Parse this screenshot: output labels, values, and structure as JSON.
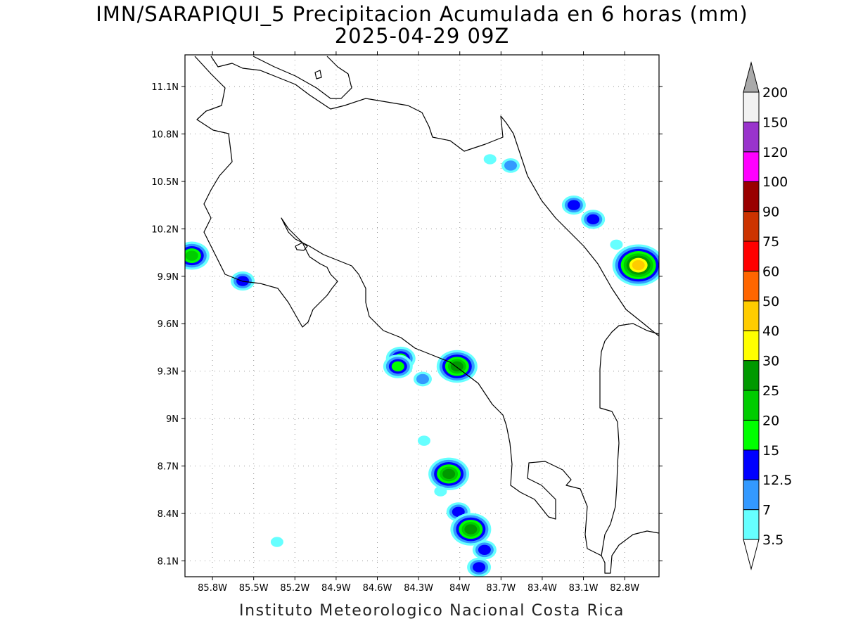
{
  "title": {
    "line1": "IMN/SARAPIQUI_5 Precipitacion Acumulada en 6 horas (mm)",
    "line2": "2025-04-29 09Z"
  },
  "footer": "Instituto Meteorologico Nacional Costa Rica",
  "map": {
    "lon_range": [
      -86.0,
      -82.55
    ],
    "lat_range": [
      8.0,
      11.3
    ],
    "lon_ticks": [
      {
        "value": -85.8,
        "label": "85.8W"
      },
      {
        "value": -85.5,
        "label": "85.5W"
      },
      {
        "value": -85.2,
        "label": "85.2W"
      },
      {
        "value": -84.9,
        "label": "84.9W"
      },
      {
        "value": -84.6,
        "label": "84.6W"
      },
      {
        "value": -84.3,
        "label": "84.3W"
      },
      {
        "value": -84.0,
        "label": "84W"
      },
      {
        "value": -83.7,
        "label": "83.7W"
      },
      {
        "value": -83.4,
        "label": "83.4W"
      },
      {
        "value": -83.1,
        "label": "83.1W"
      },
      {
        "value": -82.8,
        "label": "82.8W"
      }
    ],
    "lat_ticks": [
      {
        "value": 11.1,
        "label": "11.1N"
      },
      {
        "value": 10.8,
        "label": "10.8N"
      },
      {
        "value": 10.5,
        "label": "10.5N"
      },
      {
        "value": 10.2,
        "label": "10.2N"
      },
      {
        "value": 9.9,
        "label": "9.9N"
      },
      {
        "value": 9.6,
        "label": "9.6N"
      },
      {
        "value": 9.3,
        "label": "9.3N"
      },
      {
        "value": 9.0,
        "label": "9N"
      },
      {
        "value": 8.7,
        "label": "8.7N"
      },
      {
        "value": 8.4,
        "label": "8.4N"
      },
      {
        "value": 8.1,
        "label": "8.1N"
      }
    ],
    "grid": true
  },
  "colorbar": {
    "levels": [
      {
        "label": "3.5",
        "color": "#66ffff"
      },
      {
        "label": "7",
        "color": "#3399ff"
      },
      {
        "label": "12.5",
        "color": "#0000ff"
      },
      {
        "label": "15",
        "color": "#00ff00"
      },
      {
        "label": "20",
        "color": "#00cc00"
      },
      {
        "label": "25",
        "color": "#009900"
      },
      {
        "label": "30",
        "color": "#ffff00"
      },
      {
        "label": "40",
        "color": "#ffcc00"
      },
      {
        "label": "50",
        "color": "#ff6600"
      },
      {
        "label": "60",
        "color": "#ff0000"
      },
      {
        "label": "75",
        "color": "#cc3300"
      },
      {
        "label": "90",
        "color": "#990000"
      },
      {
        "label": "100",
        "color": "#ff00ff"
      },
      {
        "label": "120",
        "color": "#9933cc"
      },
      {
        "label": "150",
        "color": "#f2f2f2"
      },
      {
        "label": "200",
        "color": "#aaaaaa"
      }
    ],
    "under_color": "#ffffff",
    "over_color": "#aaaaaa"
  },
  "precip_cells": [
    {
      "lon": -85.95,
      "lat": 10.03,
      "max": 20
    },
    {
      "lon": -85.58,
      "lat": 9.87,
      "max": 12.5
    },
    {
      "lon": -84.43,
      "lat": 9.38,
      "max": 15
    },
    {
      "lon": -84.45,
      "lat": 9.33,
      "max": 15
    },
    {
      "lon": -84.27,
      "lat": 9.25,
      "max": 7
    },
    {
      "lon": -84.02,
      "lat": 9.33,
      "max": 25
    },
    {
      "lon": -84.08,
      "lat": 8.65,
      "max": 25
    },
    {
      "lon": -84.01,
      "lat": 8.41,
      "max": 12.5
    },
    {
      "lon": -83.92,
      "lat": 8.3,
      "max": 25
    },
    {
      "lon": -83.82,
      "lat": 8.17,
      "max": 12.5
    },
    {
      "lon": -83.86,
      "lat": 8.06,
      "max": 12.5
    },
    {
      "lon": -84.26,
      "lat": 8.86,
      "max": 3.5
    },
    {
      "lon": -84.14,
      "lat": 8.54,
      "max": 3.5
    },
    {
      "lon": -85.33,
      "lat": 8.22,
      "max": 3.5
    },
    {
      "lon": -83.63,
      "lat": 10.6,
      "max": 7
    },
    {
      "lon": -83.17,
      "lat": 10.35,
      "max": 12.5
    },
    {
      "lon": -83.03,
      "lat": 10.26,
      "max": 12.5
    },
    {
      "lon": -82.7,
      "lat": 9.97,
      "max": 40
    },
    {
      "lon": -83.78,
      "lat": 10.64,
      "max": 3.5
    },
    {
      "lon": -82.86,
      "lat": 10.1,
      "max": 3.5
    }
  ]
}
